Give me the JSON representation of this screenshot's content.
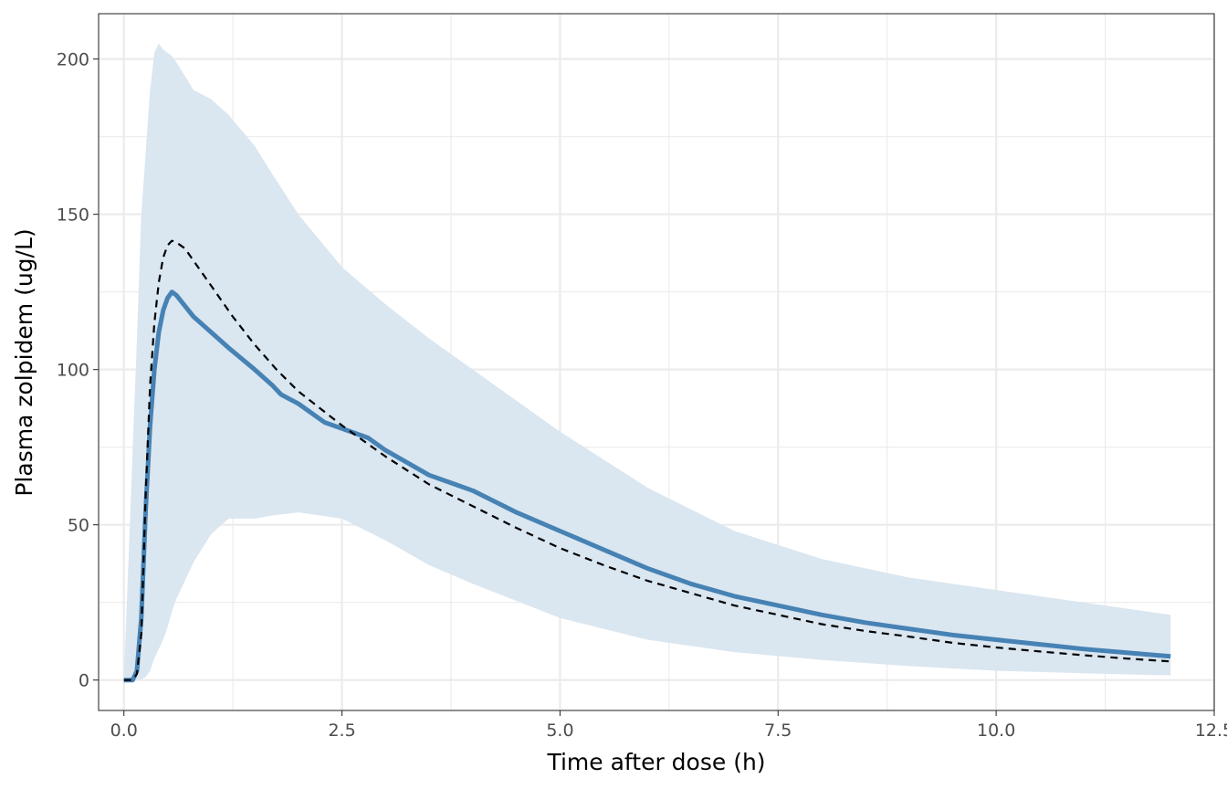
{
  "chart_data": {
    "type": "line",
    "title": "",
    "xlabel": "Time after dose (h)",
    "ylabel": "Plasma zolpidem (ug/L)",
    "xlim": [
      -0.29,
      12.5
    ],
    "ylim": [
      -9.8,
      214.6
    ],
    "x_ticks": [
      0.0,
      2.5,
      5.0,
      7.5,
      10.0,
      12.5
    ],
    "x_tick_labels": [
      "0.0",
      "2.5",
      "5.0",
      "7.5",
      "10.0",
      "12.5"
    ],
    "y_ticks": [
      0,
      50,
      100,
      150,
      200
    ],
    "y_tick_labels": [
      "0",
      "50",
      "100",
      "150",
      "200"
    ],
    "grid": true,
    "legend": "none",
    "colors": {
      "median_line": "#4682b4",
      "ribbon": "#dae6f0",
      "typical_line": "#000000",
      "panel_border": "#333333"
    },
    "series": [
      {
        "style": "ribbon",
        "x": [
          0.0,
          0.15,
          0.2,
          0.25,
          0.3,
          0.35,
          0.4,
          0.45,
          0.5,
          0.55,
          0.6,
          0.8,
          1.0,
          1.2,
          1.5,
          1.7,
          2.0,
          2.5,
          3.0,
          3.5,
          4.0,
          5.0,
          6.0,
          7.0,
          8.0,
          9.0,
          10.0,
          11.0,
          12.0
        ],
        "upper": [
          0.0,
          110.0,
          150.0,
          170.0,
          190.0,
          202.0,
          205.0,
          203.0,
          202.0,
          201.0,
          199.0,
          190.0,
          187.0,
          182.0,
          172.0,
          163.0,
          150.0,
          133.0,
          121.0,
          110.0,
          100.0,
          80.0,
          62.0,
          48.0,
          39.0,
          33.0,
          29.0,
          25.0,
          21.0
        ],
        "lower": [
          0.0,
          0.0,
          0.3,
          1.0,
          3.0,
          7.0,
          10.0,
          13.0,
          17.0,
          22.0,
          26.0,
          38.0,
          47.0,
          52.0,
          52.0,
          53.0,
          54.0,
          52.0,
          45.0,
          37.0,
          31.0,
          20.0,
          13.0,
          9.0,
          6.5,
          4.5,
          3.0,
          2.2,
          1.5
        ]
      },
      {
        "style": "median",
        "x": [
          0.0,
          0.1,
          0.15,
          0.2,
          0.25,
          0.3,
          0.35,
          0.4,
          0.45,
          0.5,
          0.55,
          0.6,
          0.8,
          1.0,
          1.2,
          1.5,
          1.7,
          1.8,
          2.0,
          2.3,
          2.5,
          2.8,
          3.0,
          3.5,
          3.8,
          4.0,
          4.5,
          5.0,
          5.5,
          6.0,
          6.5,
          7.0,
          7.5,
          8.0,
          8.5,
          9.0,
          9.5,
          10.0,
          10.5,
          11.0,
          11.5,
          12.0
        ],
        "y": [
          0.0,
          0.0,
          3.0,
          20.0,
          55.0,
          82.0,
          100.0,
          112.0,
          119.0,
          123.0,
          125.0,
          124.0,
          117.0,
          112.0,
          107.0,
          100.0,
          95.0,
          92.0,
          89.0,
          83.0,
          81.0,
          78.0,
          74.0,
          66.0,
          63.0,
          61.0,
          54.0,
          48.0,
          42.0,
          36.0,
          31.0,
          27.0,
          24.0,
          21.0,
          18.5,
          16.5,
          14.5,
          13.0,
          11.5,
          10.0,
          8.8,
          7.6
        ]
      },
      {
        "style": "typical",
        "x": [
          0.0,
          0.1,
          0.15,
          0.2,
          0.25,
          0.3,
          0.35,
          0.4,
          0.45,
          0.5,
          0.55,
          0.6,
          0.7,
          0.8,
          1.0,
          1.25,
          1.5,
          1.75,
          2.0,
          2.5,
          3.0,
          3.5,
          4.0,
          4.5,
          5.0,
          5.5,
          6.0,
          6.5,
          7.0,
          7.5,
          8.0,
          8.5,
          9.0,
          9.5,
          10.0,
          10.5,
          11.0,
          11.5,
          12.0
        ],
        "y": [
          0.0,
          0.0,
          2.0,
          15.0,
          60.0,
          95.0,
          115.0,
          128.0,
          136.0,
          140.0,
          141.5,
          141.0,
          139.0,
          135.0,
          127.0,
          117.0,
          108.0,
          100.0,
          93.0,
          82.0,
          72.0,
          63.0,
          56.0,
          49.0,
          42.5,
          37.0,
          32.0,
          28.0,
          24.0,
          21.0,
          18.0,
          15.8,
          14.0,
          12.0,
          10.5,
          9.2,
          8.0,
          6.9,
          6.0
        ]
      }
    ]
  }
}
